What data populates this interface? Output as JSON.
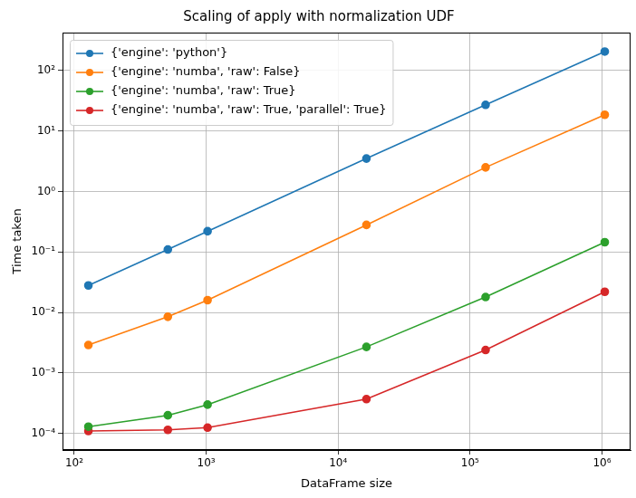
{
  "chart_data": {
    "type": "line",
    "title": "Scaling of apply with normalization UDF",
    "xlabel": "DataFrame size",
    "ylabel": "Time taken",
    "log": true,
    "grid": true,
    "legend": "upper left",
    "x": [
      128,
      512,
      1024,
      16384,
      131072,
      1048576
    ],
    "xlim": [
      81.5,
      1645000
    ],
    "ylim": [
      5.34e-05,
      422
    ],
    "xticks": [
      {
        "value": 100,
        "label": "10²"
      },
      {
        "value": 1000,
        "label": "10³"
      },
      {
        "value": 10000,
        "label": "10⁴"
      },
      {
        "value": 100000,
        "label": "10⁵"
      },
      {
        "value": 1000000,
        "label": "10⁶"
      }
    ],
    "yticks": [
      {
        "value": 0.0001,
        "label": "10⁻⁴"
      },
      {
        "value": 0.001,
        "label": "10⁻³"
      },
      {
        "value": 0.01,
        "label": "10⁻²"
      },
      {
        "value": 0.1,
        "label": "10⁻¹"
      },
      {
        "value": 1,
        "label": "10⁰"
      },
      {
        "value": 10,
        "label": "10¹"
      },
      {
        "value": 100,
        "label": "10²"
      }
    ],
    "series": [
      {
        "name": "{'engine': 'python'}",
        "color": "#1f77b4",
        "marker": "circle",
        "line_style": "solid",
        "values": [
          0.028,
          0.11,
          0.22,
          3.5,
          27,
          205
        ]
      },
      {
        "name": "{'engine': 'numba', 'raw': False}",
        "color": "#ff7f0e",
        "marker": "circle",
        "line_style": "solid",
        "values": [
          0.0029,
          0.0085,
          0.016,
          0.28,
          2.5,
          18.5
        ]
      },
      {
        "name": "{'engine': 'numba', 'raw': True}",
        "color": "#2ca02c",
        "marker": "circle",
        "line_style": "solid",
        "values": [
          0.00013,
          0.0002,
          0.0003,
          0.0027,
          0.018,
          0.145
        ]
      },
      {
        "name": "{'engine': 'numba', 'raw': True, 'parallel': True}",
        "color": "#d62728",
        "marker": "circle",
        "line_style": "solid",
        "values": [
          0.00011,
          0.000115,
          0.000125,
          0.00037,
          0.0024,
          0.022
        ]
      }
    ]
  }
}
